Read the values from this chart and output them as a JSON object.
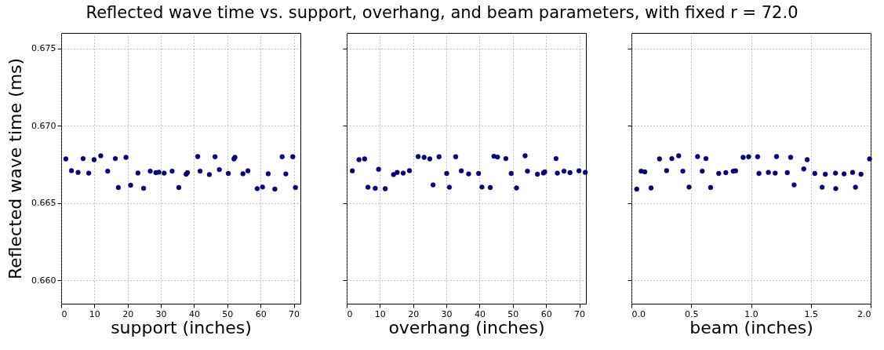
{
  "chart_data": [
    {
      "type": "scatter",
      "title": "Reflected wave time vs. support, overhang, and beam parameters, with fixed r = 72.0",
      "xlabel": "support (inches)",
      "ylabel": "Reflected wave time (ms)",
      "grid": true,
      "marker": "circle",
      "xlim": [
        0,
        72
      ],
      "xticks": [
        0,
        10,
        20,
        30,
        40,
        50,
        60,
        70
      ],
      "ylim": [
        0.6585,
        0.676
      ],
      "yticks": [
        {
          "value": 0.66,
          "label": "0.660"
        },
        {
          "value": 0.665,
          "label": "0.665"
        },
        {
          "value": 0.67,
          "label": "0.670"
        },
        {
          "value": 0.675,
          "label": "0.675"
        }
      ],
      "series": [
        {
          "color": "#00008b",
          "x": [
            1.4,
            3.1,
            5.1,
            6.6,
            8.3,
            9.9,
            11.9,
            14.0,
            16.3,
            17.2,
            19.5,
            20.9,
            23.1,
            24.8,
            26.8,
            28.5,
            29.4,
            31.0,
            33.4,
            35.4,
            37.6,
            38.0,
            41.1,
            41.8,
            44.6,
            46.3,
            47.6,
            50.3,
            52.0,
            52.3,
            54.7,
            56.2,
            59.0,
            60.6,
            62.3,
            64.3,
            66.5,
            67.6,
            69.7,
            70.5
          ],
          "values": [
            0.66786,
            0.6671,
            0.66699,
            0.66788,
            0.66694,
            0.66781,
            0.66806,
            0.66707,
            0.66788,
            0.66601,
            0.66796,
            0.66616,
            0.66695,
            0.66596,
            0.66707,
            0.66697,
            0.667,
            0.66694,
            0.66707,
            0.66601,
            0.66687,
            0.66697,
            0.66801,
            0.66707,
            0.66685,
            0.668,
            0.66717,
            0.66692,
            0.66786,
            0.66796,
            0.6669,
            0.66709,
            0.66594,
            0.66604,
            0.6669,
            0.66591,
            0.668,
            0.66689,
            0.668,
            0.66601
          ]
        }
      ]
    },
    {
      "type": "scatter",
      "xlabel": "overhang (inches)",
      "grid": true,
      "marker": "circle",
      "tick_labels": "x",
      "xlim": [
        0,
        72
      ],
      "xticks": [
        0,
        10,
        20,
        30,
        40,
        50,
        60,
        70
      ],
      "ylim": [
        0.6585,
        0.676
      ],
      "yticks": [
        {
          "value": 0.66,
          "label": null
        },
        {
          "value": 0.665,
          "label": null
        },
        {
          "value": 0.67,
          "label": null
        },
        {
          "value": 0.675,
          "label": null
        }
      ],
      "series": [
        {
          "color": "#00008b",
          "x": [
            1.7,
            3.7,
            5.4,
            6.4,
            8.6,
            9.6,
            11.6,
            14.1,
            15.2,
            17.0,
            18.9,
            21.5,
            23.3,
            25.0,
            26.0,
            27.8,
            30.1,
            30.9,
            32.8,
            34.5,
            36.7,
            39.7,
            40.7,
            43.2,
            44.3,
            45.4,
            47.9,
            49.5,
            51.1,
            53.7,
            54.4,
            57.4,
            59.2,
            59.6,
            63.0,
            63.4,
            65.4,
            67.2,
            69.9,
            71.8
          ],
          "values": [
            0.66709,
            0.66781,
            0.66786,
            0.66603,
            0.66596,
            0.66719,
            0.66593,
            0.66685,
            0.66699,
            0.66694,
            0.6671,
            0.66801,
            0.66796,
            0.66786,
            0.66618,
            0.668,
            0.66692,
            0.66603,
            0.668,
            0.66709,
            0.66689,
            0.66692,
            0.66604,
            0.66601,
            0.66803,
            0.66798,
            0.66788,
            0.66692,
            0.66598,
            0.66806,
            0.66707,
            0.66687,
            0.66695,
            0.66702,
            0.66788,
            0.66694,
            0.66707,
            0.66697,
            0.66709,
            0.66699
          ]
        }
      ]
    },
    {
      "type": "scatter",
      "xlabel": "beam (inches)",
      "grid": true,
      "marker": "circle",
      "tick_labels": "x",
      "xlim": [
        0,
        2.0
      ],
      "xticks": [
        {
          "value": 0,
          "label": "0.0"
        },
        {
          "value": 0.5,
          "label": "0.5"
        },
        {
          "value": 1,
          "label": "1.0"
        },
        {
          "value": 1.5,
          "label": "1.5"
        },
        {
          "value": 2,
          "label": "2.0"
        }
      ],
      "ylim": [
        0.6585,
        0.676
      ],
      "yticks": [
        {
          "value": 0.66,
          "label": null
        },
        {
          "value": 0.665,
          "label": null
        },
        {
          "value": 0.67,
          "label": null
        },
        {
          "value": 0.675,
          "label": null
        }
      ],
      "series": [
        {
          "color": "#00008b",
          "x": [
            0.044,
            0.081,
            0.112,
            0.164,
            0.235,
            0.294,
            0.338,
            0.395,
            0.43,
            0.482,
            0.553,
            0.592,
            0.623,
            0.662,
            0.73,
            0.789,
            0.851,
            0.871,
            0.934,
            0.98,
            1.055,
            1.066,
            1.145,
            1.202,
            1.213,
            1.303,
            1.331,
            1.36,
            1.441,
            1.469,
            1.533,
            1.594,
            1.621,
            1.706,
            1.708,
            1.778,
            1.849,
            1.873,
            1.919,
            1.991
          ],
          "values": [
            0.66591,
            0.66707,
            0.66702,
            0.66598,
            0.66786,
            0.6671,
            0.66788,
            0.66806,
            0.66707,
            0.66604,
            0.66801,
            0.66707,
            0.66788,
            0.66601,
            0.66692,
            0.66697,
            0.66707,
            0.66709,
            0.66796,
            0.668,
            0.668,
            0.66692,
            0.66699,
            0.66694,
            0.66801,
            0.66697,
            0.66796,
            0.66618,
            0.66721,
            0.66781,
            0.66692,
            0.66603,
            0.66687,
            0.66694,
            0.66594,
            0.66689,
            0.66699,
            0.66603,
            0.66687,
            0.66786
          ]
        }
      ]
    }
  ]
}
